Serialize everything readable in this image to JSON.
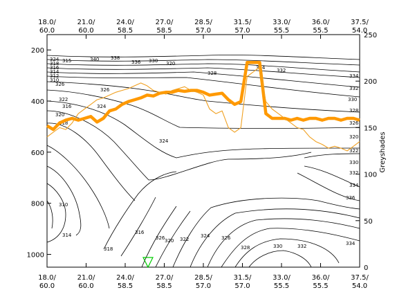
{
  "chart_data": {
    "type": "line",
    "title": "",
    "axes": {
      "bottom_ticks": [
        {
          "line1": "18.0/",
          "line2": "60.0"
        },
        {
          "line1": "21.0/",
          "line2": "60.0"
        },
        {
          "line1": "24.0/",
          "line2": "58.5"
        },
        {
          "line1": "27.0/",
          "line2": "58.5"
        },
        {
          "line1": "28.5/",
          "line2": "57.0"
        },
        {
          "line1": "31.5/",
          "line2": "57.0"
        },
        {
          "line1": "33.0/",
          "line2": "55.5"
        },
        {
          "line1": "36.0/",
          "line2": "55.5"
        },
        {
          "line1": "37.5/",
          "line2": "54.0"
        }
      ],
      "left_ticks": [
        200,
        400,
        600,
        800,
        1000
      ],
      "left_range": [
        1050,
        140
      ],
      "right_ticks": [
        0,
        50,
        100,
        150,
        200,
        250
      ],
      "right_range": [
        0,
        250
      ],
      "right_label": "Greyshades",
      "x_range": [
        0,
        100
      ]
    },
    "contour_labels": [
      "324",
      "318",
      "316",
      "314",
      "312",
      "310",
      "315",
      "340",
      "338",
      "336",
      "330",
      "320",
      "334",
      "332",
      "328",
      "326",
      "322",
      "316",
      "320",
      "318",
      "326",
      "324",
      "310",
      "314",
      "318",
      "316",
      "326",
      "320",
      "322",
      "324",
      "326",
      "328",
      "330",
      "332",
      "334",
      "336",
      "334",
      "332",
      "330",
      "322",
      "320",
      "326",
      "328",
      "330",
      "332",
      "334",
      "324"
    ],
    "series": [
      {
        "name": "",
        "x": [
          0,
          2,
          4,
          6,
          8,
          10,
          12,
          14,
          16,
          18,
          20,
          22,
          24,
          26,
          28,
          30,
          32,
          34,
          36,
          38,
          40,
          42,
          44,
          46,
          48,
          50,
          52,
          54,
          56,
          58,
          60,
          62,
          64,
          66,
          68,
          70,
          72,
          74,
          76,
          78,
          80,
          82,
          84,
          86,
          88,
          90,
          92,
          94,
          96,
          98,
          100
        ],
        "y": [
          152,
          148,
          155,
          158,
          160,
          158,
          160,
          162,
          156,
          160,
          168,
          170,
          175,
          178,
          180,
          182,
          185,
          184,
          187,
          188,
          188,
          190,
          189,
          190,
          190,
          188,
          185,
          186,
          187,
          180,
          175,
          178,
          220,
          220,
          220,
          165,
          160,
          160,
          160,
          158,
          160,
          158,
          160,
          160,
          158,
          160,
          160,
          158,
          160,
          160,
          158
        ]
      },
      {
        "name": "",
        "x": [
          0,
          2,
          4,
          6,
          8,
          10,
          12,
          14,
          16,
          18,
          20,
          22,
          24,
          26,
          28,
          30,
          32,
          34,
          36,
          38,
          40,
          42,
          44,
          46,
          48,
          50,
          52,
          54,
          56,
          58,
          60,
          62,
          64,
          66,
          68,
          70,
          72,
          74,
          76,
          78,
          80,
          82,
          84,
          86,
          88,
          90,
          92,
          94,
          96,
          98,
          100
        ],
        "y": [
          140,
          145,
          150,
          148,
          155,
          165,
          170,
          175,
          180,
          182,
          185,
          188,
          190,
          192,
          195,
          198,
          195,
          190,
          188,
          186,
          190,
          192,
          194,
          190,
          188,
          185,
          170,
          165,
          168,
          150,
          145,
          150,
          205,
          210,
          215,
          178,
          170,
          165,
          160,
          155,
          150,
          148,
          140,
          135,
          132,
          128,
          130,
          128,
          125,
          130,
          135
        ]
      }
    ]
  }
}
